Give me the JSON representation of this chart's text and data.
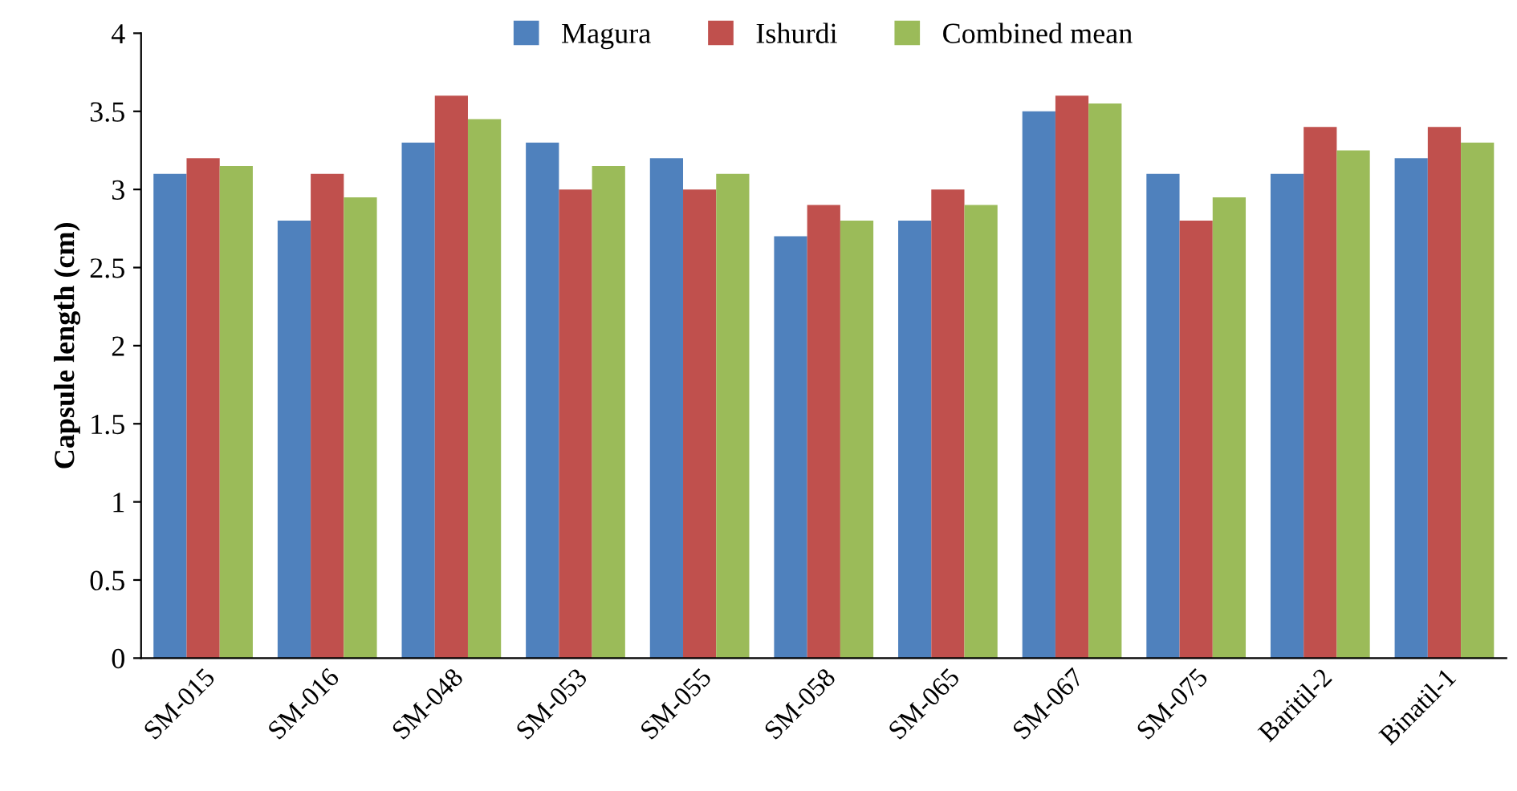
{
  "chart_data": {
    "type": "bar",
    "ylabel": "Capsule length (cm)",
    "categories": [
      "SM-015",
      "SM-016",
      "SM-048",
      "SM-053",
      "SM-055",
      "SM-058",
      "SM-065",
      "SM-067",
      "SM-075",
      "Baritil-2",
      "Binatil-1"
    ],
    "series": [
      {
        "name": "Magura",
        "color": "#4f81bd",
        "values": [
          3.1,
          2.8,
          3.3,
          3.3,
          3.2,
          2.7,
          2.8,
          3.5,
          3.1,
          3.1,
          3.2
        ]
      },
      {
        "name": "Ishurdi",
        "color": "#c0504d",
        "values": [
          3.2,
          3.1,
          3.6,
          3.0,
          3.0,
          2.9,
          3.0,
          3.6,
          2.8,
          3.4,
          3.4
        ]
      },
      {
        "name": "Combined mean",
        "color": "#9bbb59",
        "values": [
          3.15,
          2.95,
          3.45,
          3.15,
          3.1,
          2.8,
          2.9,
          3.55,
          2.95,
          3.25,
          3.3
        ]
      }
    ],
    "ylim": [
      0,
      4
    ],
    "yticks": [
      0,
      0.5,
      1,
      1.5,
      2,
      2.5,
      3,
      3.5,
      4
    ],
    "grid": false,
    "legend": "top"
  }
}
